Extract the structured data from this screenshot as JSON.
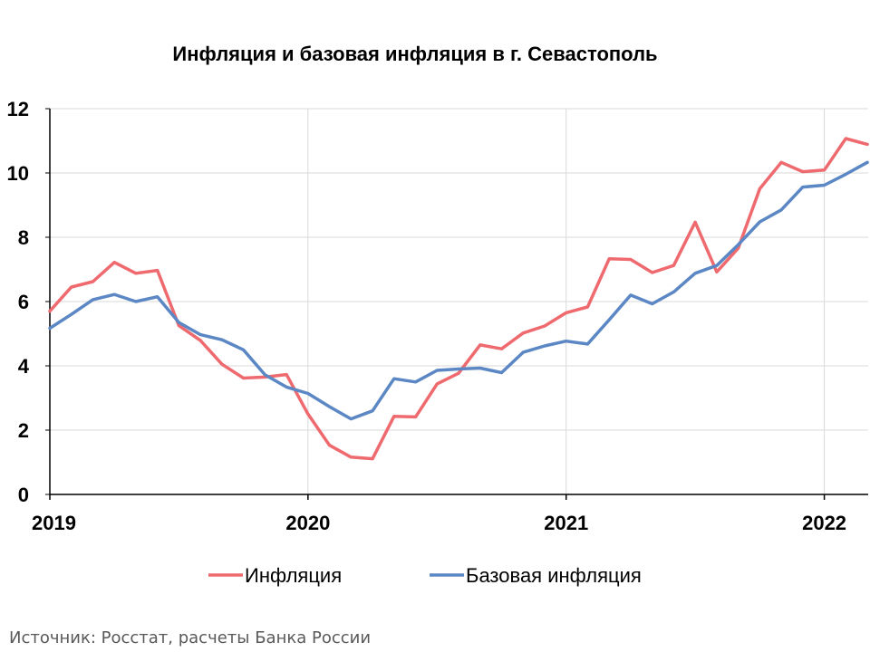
{
  "chart_data": {
    "type": "line",
    "title": "Инфляция и базовая инфляция в г. Севастополь",
    "source": "Источник: Росстат, расчеты Банка России",
    "ylim": [
      0,
      12
    ],
    "yticks": [
      "0",
      "2",
      "4",
      "6",
      "8",
      "10",
      "12"
    ],
    "xlim": [
      2019.0,
      2022.17
    ],
    "xticks": [
      "2019",
      "2020",
      "2021",
      "2022"
    ],
    "grid": true,
    "legend_position": "bottom",
    "x": [
      2019.0,
      2019.0833,
      2019.1667,
      2019.25,
      2019.3333,
      2019.4167,
      2019.5,
      2019.5833,
      2019.6667,
      2019.75,
      2019.8333,
      2019.9167,
      2020.0,
      2020.0833,
      2020.1667,
      2020.25,
      2020.3333,
      2020.4167,
      2020.5,
      2020.5833,
      2020.6667,
      2020.75,
      2020.8333,
      2020.9167,
      2021.0,
      2021.0833,
      2021.1667,
      2021.25,
      2021.3333,
      2021.4167,
      2021.5,
      2021.5833,
      2021.6667,
      2021.75,
      2021.8333,
      2021.9167,
      2022.0,
      2022.0833,
      2022.1667
    ],
    "series": [
      {
        "name": "Инфляция",
        "color": "#ee6a6f",
        "values": [
          5.7,
          6.45,
          6.62,
          7.22,
          6.88,
          6.97,
          5.25,
          4.79,
          4.05,
          3.62,
          3.65,
          3.73,
          2.5,
          1.53,
          1.16,
          1.11,
          2.43,
          2.41,
          3.44,
          3.77,
          4.65,
          4.53,
          5.02,
          5.24,
          5.65,
          5.83,
          7.33,
          7.31,
          6.9,
          7.12,
          8.47,
          6.92,
          7.66,
          9.51,
          10.33,
          10.04,
          10.09,
          11.07,
          10.89
        ]
      },
      {
        "name": "Базовая инфляция",
        "color": "#5b87c4",
        "values": [
          5.17,
          5.6,
          6.06,
          6.22,
          6.0,
          6.15,
          5.35,
          4.97,
          4.81,
          4.5,
          3.72,
          3.34,
          3.14,
          2.73,
          2.35,
          2.6,
          3.6,
          3.5,
          3.86,
          3.9,
          3.93,
          3.79,
          4.42,
          4.62,
          4.77,
          4.68,
          5.43,
          6.2,
          5.93,
          6.3,
          6.88,
          7.12,
          7.77,
          8.48,
          8.85,
          9.56,
          9.62,
          9.96,
          10.33
        ]
      }
    ]
  }
}
